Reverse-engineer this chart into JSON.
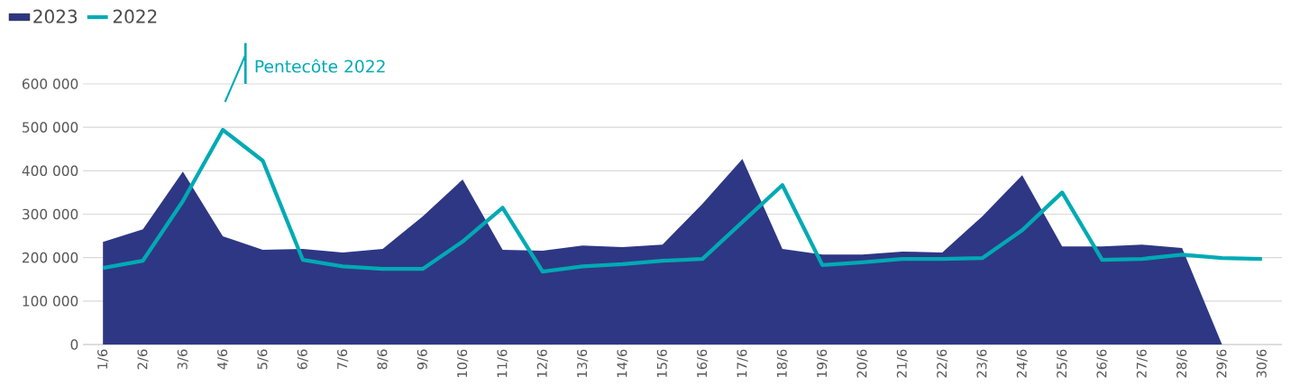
{
  "chart_data": {
    "type": "area",
    "categories": [
      "1/6",
      "2/6",
      "3/6",
      "4/6",
      "5/6",
      "6/6",
      "7/6",
      "8/6",
      "9/6",
      "10/6",
      "11/6",
      "12/6",
      "13/6",
      "14/6",
      "15/6",
      "16/6",
      "17/6",
      "18/6",
      "19/6",
      "20/6",
      "21/6",
      "22/6",
      "23/6",
      "24/6",
      "25/6",
      "26/6",
      "27/6",
      "28/6",
      "29/6",
      "30/6"
    ],
    "series": [
      {
        "name": "2023",
        "color": "#2e3784",
        "values": [
          236000,
          265000,
          398000,
          249000,
          218000,
          220000,
          212000,
          220000,
          295000,
          380000,
          218000,
          216000,
          228000,
          224000,
          230000,
          324000,
          427000,
          220000,
          207000,
          207000,
          214000,
          212000,
          295000,
          390000,
          226000,
          226000,
          230000,
          222000,
          0,
          null
        ]
      },
      {
        "name": "2022",
        "type": "line",
        "color": "#00aab4",
        "values": [
          176000,
          193000,
          330000,
          494000,
          423000,
          195000,
          180000,
          174000,
          174000,
          237000,
          315000,
          168000,
          180000,
          185000,
          193000,
          197000,
          282000,
          367000,
          183000,
          189000,
          197000,
          197000,
          199000,
          263000,
          350000,
          195000,
          197000,
          207000,
          199000,
          197000
        ]
      }
    ],
    "ylim": [
      0,
      600000
    ],
    "yticks": [
      {
        "value": 0,
        "label": "0"
      },
      {
        "value": 100000,
        "label": "100 000"
      },
      {
        "value": 200000,
        "label": "200 000"
      },
      {
        "value": 300000,
        "label": "300 000"
      },
      {
        "value": 400000,
        "label": "400 000"
      },
      {
        "value": 500000,
        "label": "500 000"
      },
      {
        "value": 600000,
        "label": "600 000"
      }
    ],
    "grid": "y",
    "legend": "top left",
    "annotations": [
      "Pentecôte 2022"
    ]
  }
}
